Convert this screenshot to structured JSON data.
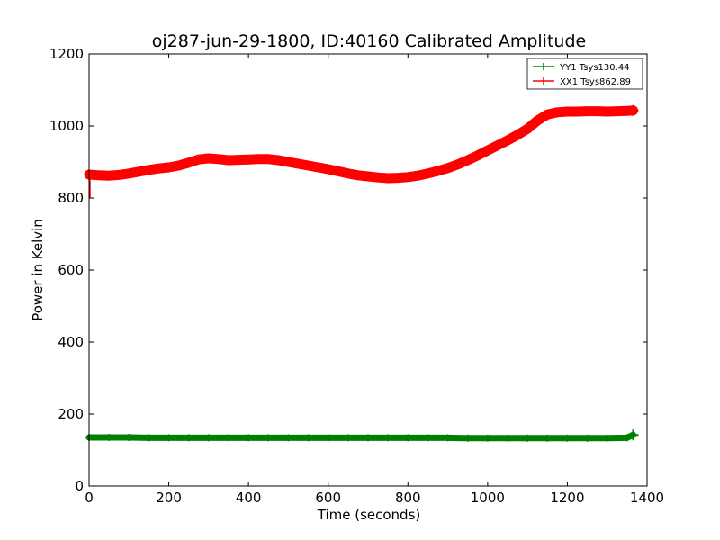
{
  "chart_data": {
    "type": "line",
    "title": "oj287-jun-29-1800, ID:40160 Calibrated Amplitude",
    "xlabel": "Time (seconds)",
    "ylabel": "Power in Kelvin",
    "xlim": [
      0,
      1400
    ],
    "ylim": [
      0,
      1200
    ],
    "xticks": [
      "0",
      "200",
      "400",
      "600",
      "800",
      "1000",
      "1200",
      "1400"
    ],
    "yticks": [
      "0",
      "200",
      "400",
      "600",
      "800",
      "1000",
      "1200"
    ],
    "grid": false,
    "legend_position": "top-right",
    "series": [
      {
        "name": "YY1 Tsys130.44",
        "color": "#008000",
        "x": [
          0,
          50,
          100,
          150,
          200,
          250,
          300,
          350,
          400,
          450,
          500,
          550,
          600,
          650,
          700,
          750,
          800,
          850,
          900,
          950,
          1000,
          1050,
          1100,
          1150,
          1200,
          1250,
          1300,
          1350,
          1365
        ],
        "y": [
          135,
          135,
          135,
          134,
          134,
          134,
          134,
          134,
          134,
          134,
          134,
          134,
          134,
          134,
          134,
          134,
          134,
          134,
          134,
          133,
          133,
          133,
          133,
          133,
          133,
          133,
          133,
          134,
          142
        ]
      },
      {
        "name": "XX1 Tsys862.89",
        "color": "#ff0000",
        "x": [
          0,
          25,
          50,
          75,
          100,
          125,
          150,
          175,
          200,
          225,
          250,
          275,
          300,
          325,
          350,
          375,
          400,
          425,
          450,
          475,
          500,
          525,
          550,
          575,
          600,
          625,
          650,
          675,
          700,
          725,
          750,
          775,
          800,
          825,
          850,
          875,
          900,
          925,
          950,
          975,
          1000,
          1025,
          1050,
          1075,
          1100,
          1125,
          1150,
          1175,
          1200,
          1225,
          1250,
          1275,
          1300,
          1325,
          1350,
          1365
        ],
        "y": [
          865,
          863,
          862,
          864,
          868,
          873,
          878,
          882,
          885,
          890,
          898,
          907,
          910,
          908,
          905,
          906,
          907,
          908,
          908,
          905,
          900,
          895,
          890,
          885,
          880,
          874,
          868,
          863,
          860,
          857,
          855,
          856,
          858,
          862,
          868,
          875,
          883,
          893,
          905,
          918,
          932,
          946,
          960,
          975,
          992,
          1015,
          1032,
          1038,
          1040,
          1040,
          1041,
          1041,
          1040,
          1041,
          1042,
          1043
        ]
      }
    ]
  }
}
